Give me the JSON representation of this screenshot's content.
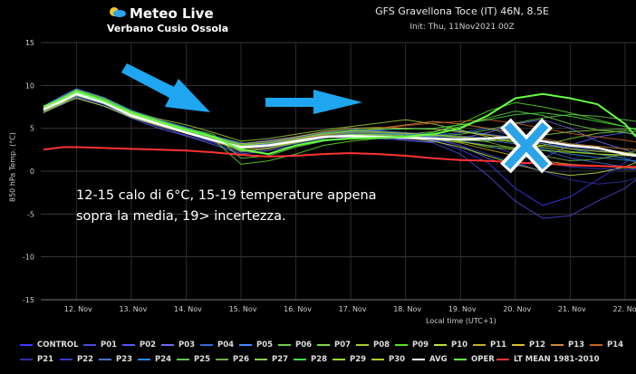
{
  "logo": {
    "brand": "Meteo Live",
    "region": "Verbano Cusio Ossola"
  },
  "header": {
    "title": "GFS Gravellona Toce (IT) 46N, 8.5E",
    "init": "Init: Thu, 11Nov2021 00Z"
  },
  "annotation": {
    "line1": "12-15 calo di 6°C, 15-19 temperature appena",
    "line2": "sopra la media, 19> incertezza."
  },
  "chart_data": {
    "type": "line",
    "title": "GFS Gravellona Toce (IT) 46N, 8.5E",
    "ylabel": "850 hPa Temp. (°C)",
    "xlabel": "Local time (UTC+1)",
    "ylim": [
      -15,
      15
    ],
    "yticks": [
      15,
      10,
      5,
      0,
      -5,
      -10,
      -15
    ],
    "xlim": [
      11.35,
      22.2
    ],
    "xticks": [
      "12. Nov",
      "13. Nov",
      "14. Nov",
      "15. Nov",
      "16. Nov",
      "17. Nov",
      "18. Nov",
      "19. Nov",
      "20. Nov",
      "21. Nov",
      "22. Nov"
    ],
    "x": [
      11.4,
      11.75,
      12.0,
      12.5,
      13.0,
      13.5,
      14.0,
      14.5,
      15.0,
      15.5,
      16.0,
      16.5,
      17.0,
      17.5,
      18.0,
      18.5,
      19.0,
      19.5,
      20.0,
      20.5,
      21.0,
      21.5,
      22.0,
      22.2
    ],
    "series": [
      {
        "name": "AVG",
        "color": "#ffffff",
        "values": [
          7.2,
          8.2,
          9.0,
          8.0,
          6.5,
          5.5,
          4.5,
          3.6,
          2.8,
          3.0,
          3.5,
          4.0,
          4.1,
          4.0,
          3.9,
          3.8,
          3.7,
          3.8,
          4.0,
          3.5,
          3.0,
          2.7,
          2.0,
          1.8
        ]
      },
      {
        "name": "OPER",
        "color": "#66ff44",
        "values": [
          7.5,
          8.5,
          9.3,
          8.2,
          6.8,
          5.8,
          4.8,
          4.0,
          2.5,
          2.0,
          3.0,
          3.6,
          3.8,
          3.9,
          4.0,
          4.3,
          5.0,
          6.5,
          8.5,
          9.0,
          8.5,
          7.8,
          5.5,
          4.0
        ]
      },
      {
        "name": "LT MEAN 1981-2010",
        "color": "#ff3333",
        "values": [
          2.5,
          2.8,
          2.8,
          2.7,
          2.6,
          2.5,
          2.4,
          2.2,
          1.9,
          1.7,
          1.8,
          2.0,
          2.1,
          2.0,
          1.8,
          1.5,
          1.3,
          1.2,
          1.0,
          0.9,
          0.7,
          0.6,
          0.5,
          0.5
        ]
      },
      {
        "name": "CONTROL",
        "color": "#3a3aff",
        "values": [
          7.3,
          8.6,
          9.4,
          8.3,
          6.6,
          5.6,
          4.4,
          3.4,
          2.6,
          2.8,
          3.4,
          3.9,
          4.2,
          4.0,
          3.8,
          3.6,
          2.5,
          1.0,
          -2.0,
          -4.0,
          -3.0,
          -1.0,
          1.0,
          2.0
        ]
      },
      {
        "name": "P01",
        "color": "#4a4ad8",
        "values": [
          7.0,
          8.0,
          8.7,
          7.8,
          6.3,
          5.2,
          4.2,
          3.3,
          2.2,
          2.6,
          3.2,
          3.8,
          4.4,
          4.2,
          3.6,
          3.3,
          2.0,
          -0.5,
          -3.5,
          -5.5,
          -5.2,
          -3.5,
          -2.0,
          -1.0
        ]
      },
      {
        "name": "P02",
        "color": "#5858ff",
        "values": [
          7.1,
          8.1,
          8.9,
          8.0,
          6.7,
          5.4,
          4.6,
          3.8,
          3.2,
          3.6,
          4.0,
          4.5,
          5.0,
          4.6,
          4.2,
          3.9,
          3.0,
          1.5,
          0.5,
          1.5,
          3.0,
          4.0,
          4.5,
          4.2
        ]
      },
      {
        "name": "P03",
        "color": "#6a6aee",
        "values": [
          6.9,
          7.8,
          8.6,
          7.6,
          6.2,
          5.0,
          4.1,
          3.1,
          2.0,
          2.4,
          3.0,
          3.6,
          4.0,
          3.8,
          3.6,
          3.4,
          3.8,
          4.5,
          5.5,
          6.0,
          5.0,
          3.5,
          2.5,
          2.0
        ]
      },
      {
        "name": "P04",
        "color": "#2f6bd8",
        "values": [
          7.4,
          8.4,
          9.1,
          8.1,
          6.6,
          5.7,
          4.9,
          4.0,
          3.0,
          3.3,
          3.7,
          4.3,
          4.6,
          4.5,
          4.3,
          4.2,
          4.5,
          5.0,
          4.0,
          2.5,
          1.5,
          1.0,
          0.5,
          0.2
        ]
      },
      {
        "name": "P05",
        "color": "#3d8bff",
        "values": [
          7.6,
          8.8,
          9.6,
          8.6,
          7.1,
          6.0,
          5.1,
          4.1,
          3.3,
          3.0,
          3.6,
          4.1,
          4.5,
          4.8,
          5.0,
          4.9,
          4.7,
          4.3,
          3.9,
          3.2,
          2.6,
          2.0,
          1.5,
          1.0
        ]
      },
      {
        "name": "P06",
        "color": "#6bd04a",
        "values": [
          7.2,
          8.3,
          9.2,
          8.2,
          6.9,
          5.9,
          5.0,
          4.3,
          1.5,
          1.8,
          2.8,
          3.5,
          3.9,
          4.1,
          4.3,
          4.6,
          5.2,
          6.2,
          7.0,
          6.5,
          5.5,
          4.8,
          4.5,
          4.3
        ]
      },
      {
        "name": "P07",
        "color": "#7ed83e",
        "values": [
          7.0,
          8.0,
          8.8,
          7.9,
          6.5,
          5.6,
          4.7,
          3.9,
          3.0,
          2.9,
          3.3,
          3.9,
          4.3,
          4.4,
          4.2,
          4.0,
          3.5,
          2.8,
          2.5,
          3.0,
          3.8,
          4.4,
          4.7,
          4.6
        ]
      },
      {
        "name": "P08",
        "color": "#a0d030",
        "values": [
          7.5,
          8.7,
          9.5,
          8.5,
          7.0,
          6.1,
          5.4,
          4.5,
          3.5,
          3.8,
          4.3,
          4.8,
          5.2,
          5.6,
          6.0,
          5.5,
          4.8,
          4.0,
          3.4,
          2.8,
          2.3,
          2.0,
          1.8,
          1.8
        ]
      },
      {
        "name": "P09",
        "color": "#58e020",
        "values": [
          7.3,
          8.2,
          9.0,
          8.1,
          6.6,
          5.5,
          4.6,
          3.7,
          0.8,
          1.2,
          2.0,
          3.0,
          3.5,
          3.8,
          4.0,
          4.5,
          5.5,
          7.0,
          8.0,
          7.5,
          6.8,
          6.0,
          5.2,
          4.8
        ]
      },
      {
        "name": "P10",
        "color": "#b8e040",
        "values": [
          6.8,
          7.9,
          8.5,
          7.6,
          6.3,
          5.3,
          4.4,
          3.6,
          2.7,
          3.1,
          3.6,
          4.0,
          4.2,
          4.1,
          3.9,
          3.5,
          2.8,
          1.8,
          0.8,
          0.0,
          -0.5,
          -0.2,
          0.5,
          1.0
        ]
      },
      {
        "name": "P11",
        "color": "#c8b020",
        "values": [
          7.1,
          8.1,
          8.9,
          7.9,
          6.4,
          5.4,
          4.5,
          3.5,
          2.4,
          2.7,
          3.4,
          4.0,
          4.4,
          4.3,
          4.1,
          3.8,
          3.3,
          2.5,
          1.8,
          1.2,
          0.8,
          0.6,
          0.4,
          0.4
        ]
      },
      {
        "name": "P12",
        "color": "#d8c030",
        "values": [
          7.4,
          8.5,
          9.3,
          8.4,
          6.9,
          5.8,
          4.9,
          4.0,
          3.2,
          3.5,
          4.0,
          4.6,
          5.0,
          5.1,
          5.0,
          4.9,
          4.6,
          4.2,
          3.8,
          3.4,
          3.0,
          2.6,
          2.2,
          2.0
        ]
      },
      {
        "name": "P13",
        "color": "#d08a30",
        "values": [
          7.2,
          8.3,
          9.1,
          8.2,
          6.7,
          5.7,
          4.8,
          3.9,
          2.9,
          3.2,
          3.7,
          4.2,
          4.7,
          5.0,
          5.4,
          5.8,
          5.5,
          5.0,
          4.4,
          3.8,
          3.2,
          2.9,
          2.6,
          2.5
        ]
      },
      {
        "name": "P14",
        "color": "#c86020",
        "values": [
          7.0,
          8.1,
          8.9,
          8.0,
          6.5,
          5.4,
          4.4,
          3.5,
          2.6,
          2.9,
          3.5,
          4.1,
          4.6,
          4.9,
          5.3,
          5.6,
          5.8,
          6.0,
          5.6,
          5.0,
          4.4,
          4.0,
          3.6,
          3.4
        ]
      },
      {
        "name": "P21",
        "color": "#2f2fa8",
        "values": [
          7.3,
          8.4,
          9.2,
          8.3,
          6.8,
          5.8,
          4.8,
          3.8,
          2.8,
          3.1,
          3.6,
          4.1,
          4.3,
          4.2,
          4.0,
          3.7,
          3.0,
          2.0,
          1.0,
          0.0,
          -1.0,
          -1.5,
          -1.2,
          -0.8
        ]
      },
      {
        "name": "P22",
        "color": "#3a3ac8",
        "values": [
          7.1,
          8.2,
          9.0,
          8.1,
          6.6,
          5.6,
          4.6,
          3.7,
          2.7,
          3.0,
          3.5,
          4.0,
          4.4,
          4.4,
          4.2,
          4.0,
          3.6,
          3.0,
          2.0,
          1.0,
          0.5,
          0.3,
          0.2,
          0.2
        ]
      },
      {
        "name": "P23",
        "color": "#4f70c8",
        "values": [
          7.6,
          8.7,
          9.4,
          8.4,
          7.0,
          6.0,
          5.0,
          4.1,
          3.1,
          3.4,
          3.9,
          4.4,
          4.8,
          4.7,
          4.5,
          4.3,
          4.1,
          3.9,
          3.6,
          3.2,
          2.8,
          2.4,
          2.0,
          1.8
        ]
      },
      {
        "name": "P24",
        "color": "#2a8ad8",
        "values": [
          7.2,
          8.3,
          9.1,
          8.2,
          6.7,
          5.6,
          4.7,
          3.8,
          2.9,
          3.2,
          3.8,
          4.3,
          4.6,
          4.5,
          4.3,
          4.1,
          3.9,
          3.6,
          3.2,
          2.6,
          2.0,
          1.6,
          1.3,
          1.2
        ]
      },
      {
        "name": "P25",
        "color": "#60c850",
        "values": [
          7.0,
          8.0,
          8.8,
          7.9,
          6.4,
          5.4,
          4.5,
          3.6,
          2.7,
          3.0,
          3.5,
          4.0,
          4.3,
          4.3,
          4.2,
          4.1,
          4.3,
          4.8,
          5.6,
          6.2,
          6.6,
          6.4,
          6.0,
          5.8
        ]
      },
      {
        "name": "P26",
        "color": "#70b040",
        "values": [
          7.4,
          8.5,
          9.3,
          8.3,
          6.8,
          5.7,
          4.7,
          3.8,
          2.8,
          3.1,
          3.6,
          4.1,
          4.5,
          4.5,
          4.4,
          4.2,
          3.9,
          3.4,
          2.6,
          1.8,
          1.2,
          1.4,
          2.0,
          2.4
        ]
      },
      {
        "name": "P27",
        "color": "#88d048",
        "values": [
          7.2,
          8.2,
          9.0,
          8.0,
          6.6,
          5.6,
          4.6,
          3.7,
          2.3,
          2.6,
          3.3,
          3.9,
          4.3,
          4.2,
          4.0,
          3.8,
          3.6,
          3.5,
          3.8,
          4.2,
          4.6,
          4.8,
          4.9,
          5.0
        ]
      },
      {
        "name": "P28",
        "color": "#40e040",
        "values": [
          7.5,
          8.6,
          9.4,
          8.4,
          7.0,
          5.9,
          5.0,
          4.1,
          3.1,
          3.3,
          3.8,
          4.4,
          4.8,
          4.9,
          4.9,
          5.0,
          5.4,
          6.0,
          6.6,
          6.8,
          6.4,
          5.8,
          5.2,
          4.9
        ]
      },
      {
        "name": "P29",
        "color": "#98d830",
        "values": [
          7.1,
          8.1,
          8.9,
          8.0,
          6.5,
          5.5,
          4.6,
          3.6,
          2.6,
          2.9,
          3.4,
          3.9,
          4.2,
          4.1,
          3.9,
          3.7,
          3.4,
          3.0,
          2.7,
          2.4,
          2.2,
          2.0,
          1.9,
          1.9
        ]
      },
      {
        "name": "P30",
        "color": "#b0c828",
        "values": [
          7.3,
          8.4,
          9.2,
          8.2,
          6.7,
          5.7,
          4.8,
          3.9,
          3.0,
          3.3,
          3.8,
          4.3,
          4.7,
          4.6,
          4.4,
          4.2,
          4.0,
          3.7,
          3.4,
          3.0,
          2.6,
          2.3,
          2.1,
          2.0
        ]
      }
    ],
    "legend_placement": "bottom",
    "legend": [
      [
        "CONTROL",
        "P01",
        "P02",
        "P03",
        "P04",
        "P05",
        "P06",
        "P07",
        "P08",
        "P09",
        "P10",
        "P11",
        "P12",
        "P13",
        "P14"
      ],
      [
        "P21",
        "P22",
        "P23",
        "P24",
        "P25",
        "P26",
        "P27",
        "P28",
        "P29",
        "P30",
        "AVG",
        "OPER",
        "LT MEAN 1981-2010"
      ]
    ]
  }
}
